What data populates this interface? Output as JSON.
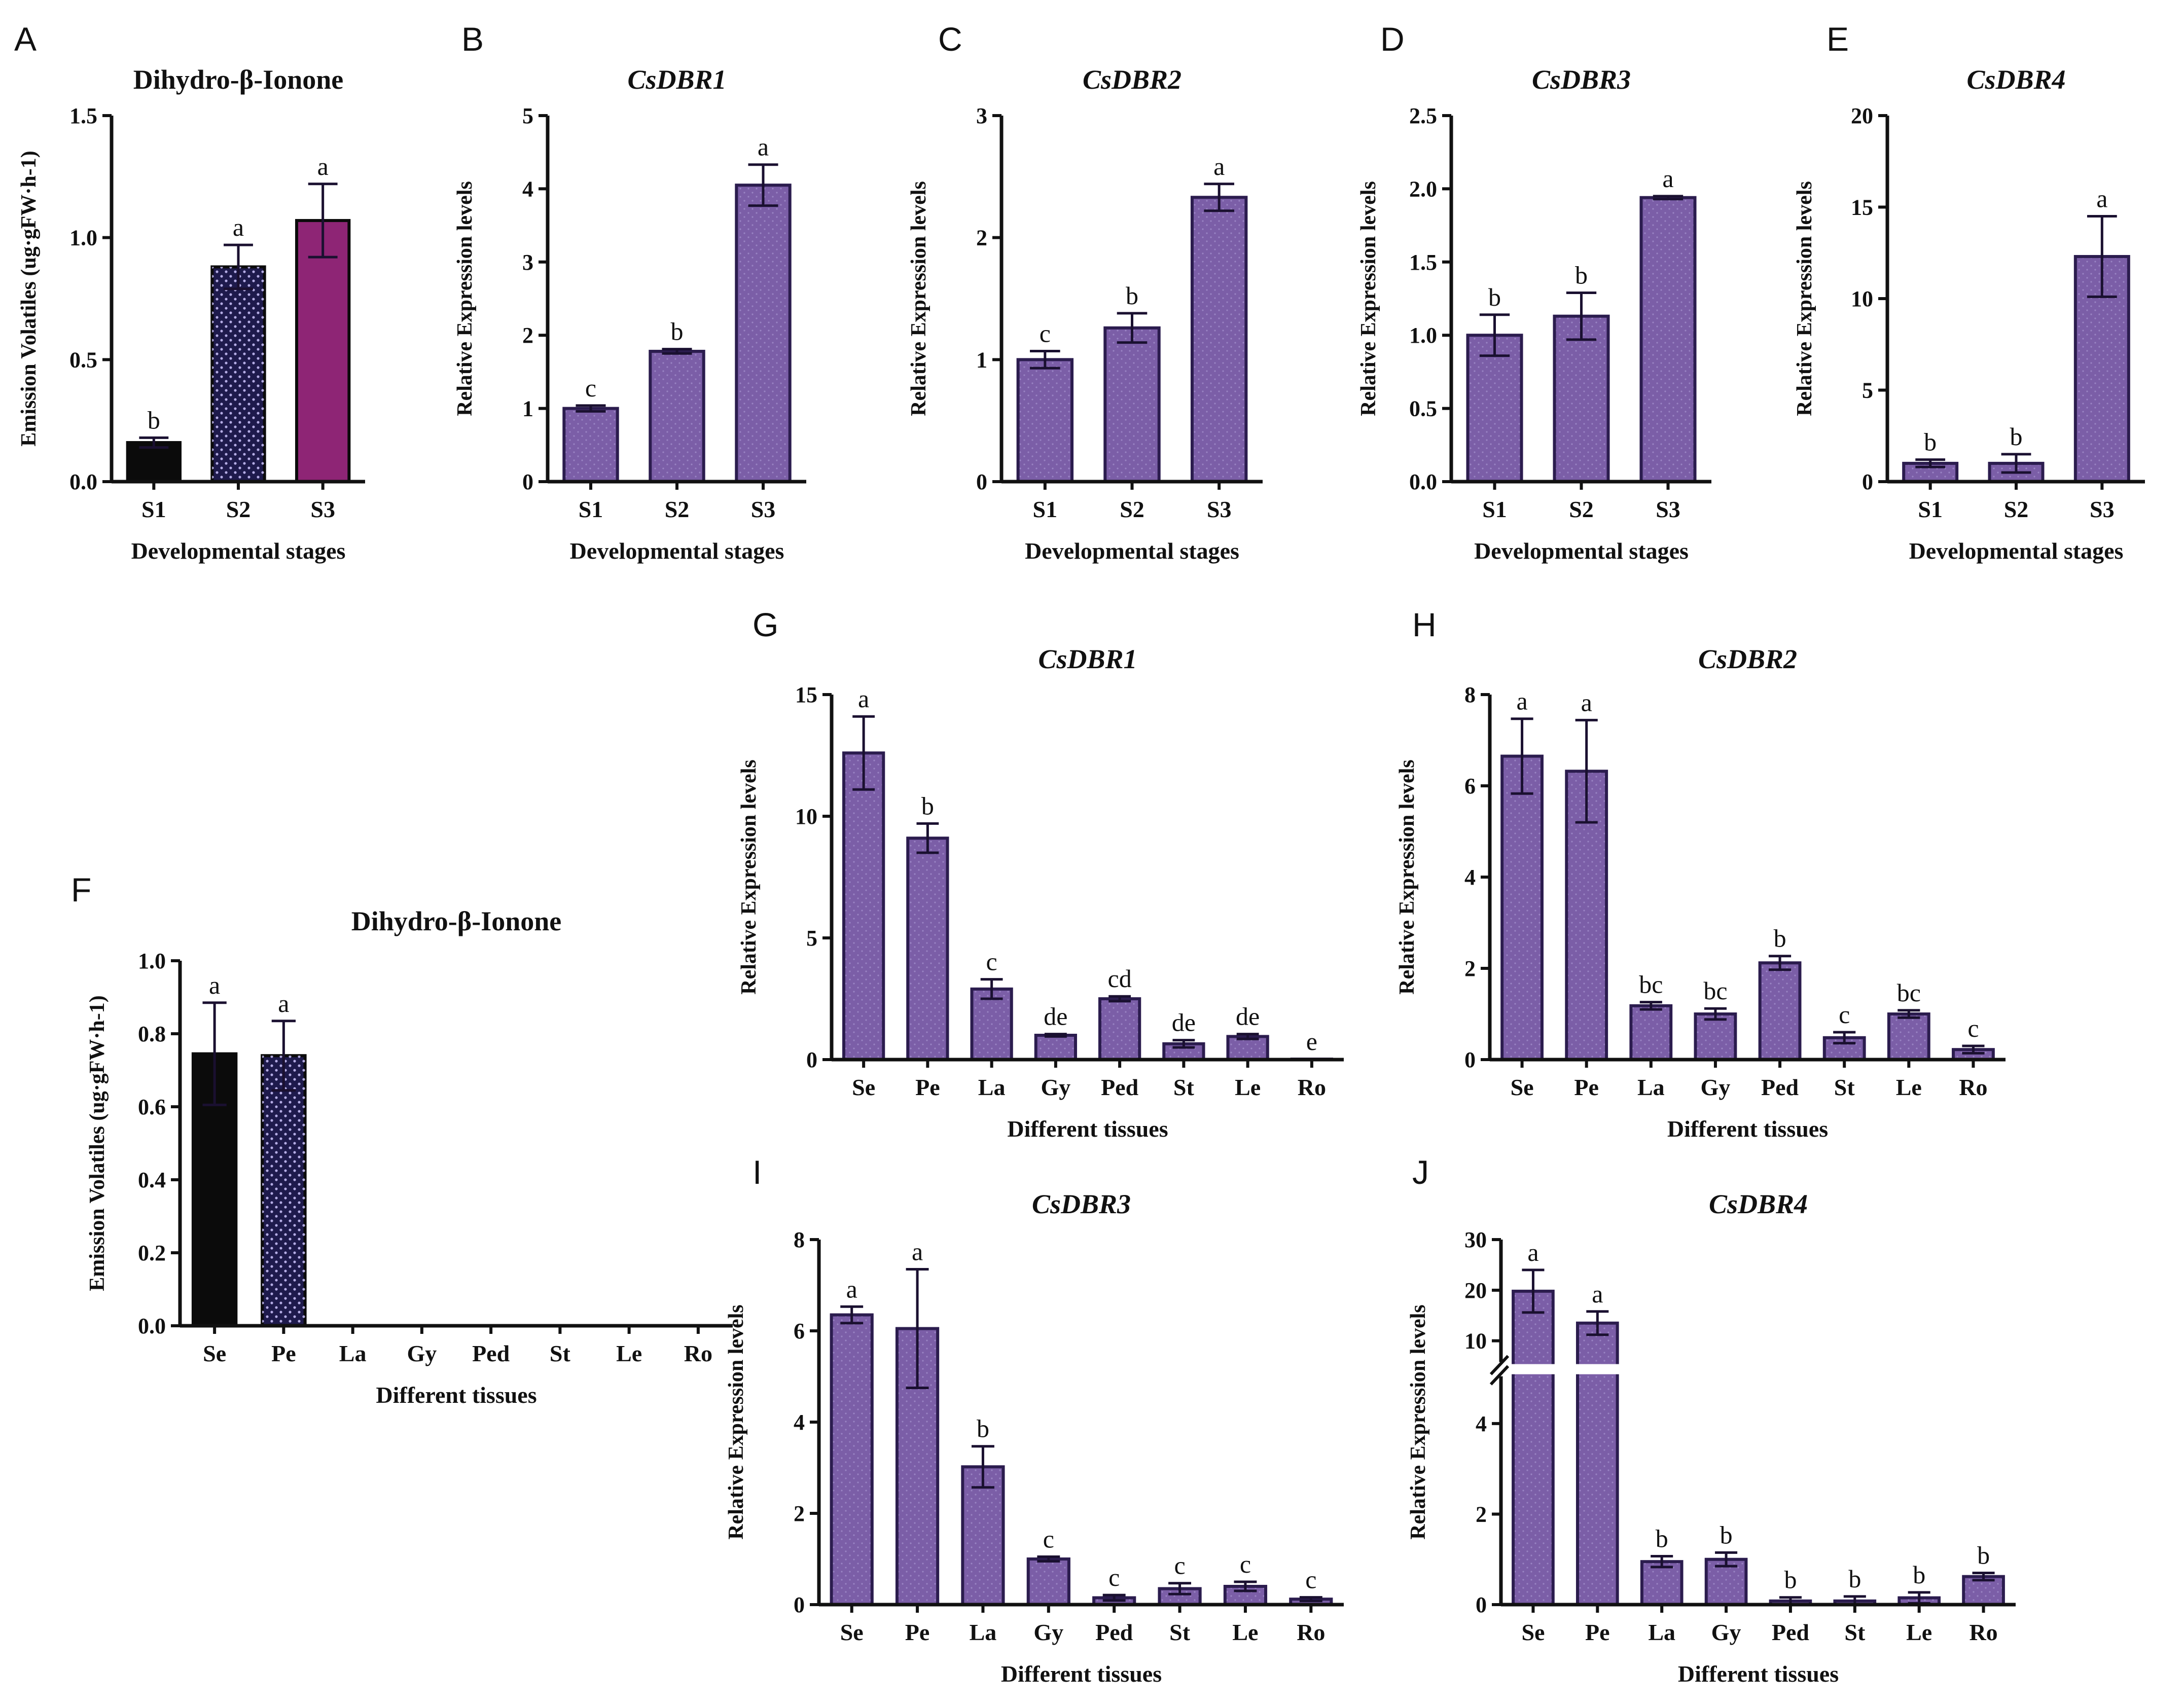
{
  "colors": {
    "purple": "#7B5EA7",
    "purple_edge": "#2B1C4E",
    "black": "#0b0b0b",
    "navy": "#1E1A4C",
    "magenta": "#8E2575"
  },
  "chart_data": [
    {
      "panel": "A",
      "type": "bar",
      "title": "Dihydro-β-Ionone",
      "title_italic": false,
      "categories": [
        "S1",
        "S2",
        "S3"
      ],
      "values": [
        0.16,
        0.88,
        1.07
      ],
      "errors": [
        0.02,
        0.09,
        0.15
      ],
      "significance": [
        "b",
        "a",
        "a"
      ],
      "bar_colors": [
        "black",
        "navy",
        "magenta"
      ],
      "bar_patterns": [
        "none",
        "dots",
        "none"
      ],
      "xlabel": "Developmental stages",
      "ylabel": "Emission Volatiles (ug·gFW·h-1)",
      "ylim": [
        0,
        1.5
      ],
      "yticks": [
        "0.0",
        "0.5",
        "1.0",
        "1.5"
      ]
    },
    {
      "panel": "B",
      "type": "bar",
      "title": "CsDBR1",
      "title_italic": true,
      "categories": [
        "S1",
        "S2",
        "S3"
      ],
      "values": [
        1.0,
        1.78,
        4.05
      ],
      "errors": [
        0.04,
        0.03,
        0.28
      ],
      "significance": [
        "c",
        "b",
        "a"
      ],
      "xlabel": "Developmental stages",
      "ylabel": "Relative Expression levels",
      "ylim": [
        0,
        5
      ],
      "yticks": [
        "0",
        "1",
        "2",
        "3",
        "4",
        "5"
      ]
    },
    {
      "panel": "C",
      "type": "bar",
      "title": "CsDBR2",
      "title_italic": true,
      "categories": [
        "S1",
        "S2",
        "S3"
      ],
      "values": [
        1.0,
        1.26,
        2.33
      ],
      "errors": [
        0.07,
        0.12,
        0.11
      ],
      "significance": [
        "c",
        "b",
        "a"
      ],
      "xlabel": "Developmental stages",
      "ylabel": "Relative Expression levels",
      "ylim": [
        0,
        3
      ],
      "yticks": [
        "0",
        "1",
        "2",
        "3"
      ]
    },
    {
      "panel": "D",
      "type": "bar",
      "title": "CsDBR3",
      "title_italic": true,
      "categories": [
        "S1",
        "S2",
        "S3"
      ],
      "values": [
        1.0,
        1.13,
        1.94
      ],
      "errors": [
        0.14,
        0.16,
        0.01
      ],
      "significance": [
        "b",
        "b",
        "a"
      ],
      "xlabel": "Developmental stages",
      "ylabel": "Relative Expression levels",
      "ylim": [
        0,
        2.5
      ],
      "yticks": [
        "0.0",
        "0.5",
        "1.0",
        "1.5",
        "2.0",
        "2.5"
      ]
    },
    {
      "panel": "E",
      "type": "bar",
      "title": "CsDBR4",
      "title_italic": true,
      "categories": [
        "S1",
        "S2",
        "S3"
      ],
      "values": [
        1.0,
        1.0,
        12.3
      ],
      "errors": [
        0.2,
        0.5,
        2.2
      ],
      "significance": [
        "b",
        "b",
        "a"
      ],
      "xlabel": "Developmental stages",
      "ylabel": "Relative Expression levels",
      "ylim": [
        0,
        20
      ],
      "yticks": [
        "0",
        "5",
        "10",
        "15",
        "20"
      ]
    },
    {
      "panel": "F",
      "type": "bar",
      "title": "Dihydro-β-Ionone",
      "title_italic": false,
      "categories": [
        "Se",
        "Pe",
        "La",
        "Gy",
        "Ped",
        "St",
        "Le",
        "Ro"
      ],
      "values": [
        0.745,
        0.74,
        0,
        0,
        0,
        0,
        0,
        0
      ],
      "errors": [
        0.14,
        0.095,
        0,
        0,
        0,
        0,
        0,
        0
      ],
      "significance": [
        "a",
        "a",
        "",
        "",
        "",
        "",
        "",
        ""
      ],
      "bar_colors": [
        "black",
        "navy"
      ],
      "bar_patterns": [
        "none",
        "dots"
      ],
      "xlabel": "Different tissues",
      "ylabel": "Emission Volatiles (ug·gFW·h-1)",
      "ylim": [
        0,
        1.0
      ],
      "yticks": [
        "0.0",
        "0.2",
        "0.4",
        "0.6",
        "0.8",
        "1.0"
      ]
    },
    {
      "panel": "G",
      "type": "bar",
      "title": "CsDBR1",
      "title_italic": true,
      "categories": [
        "Se",
        "Pe",
        "La",
        "Gy",
        "Ped",
        "St",
        "Le",
        "Ro"
      ],
      "values": [
        12.6,
        9.1,
        2.9,
        1.0,
        2.5,
        0.65,
        0.95,
        0.02
      ],
      "errors": [
        1.5,
        0.6,
        0.4,
        0.05,
        0.1,
        0.15,
        0.1,
        0
      ],
      "significance": [
        "a",
        "b",
        "c",
        "de",
        "cd",
        "de",
        "de",
        "e"
      ],
      "xlabel": "Different tissues",
      "ylabel": "Relative Expression levels",
      "ylim": [
        0,
        15
      ],
      "yticks": [
        "0",
        "5",
        "10",
        "15"
      ]
    },
    {
      "panel": "H",
      "type": "bar",
      "title": "CsDBR2",
      "title_italic": true,
      "categories": [
        "Se",
        "Pe",
        "La",
        "Gy",
        "Ped",
        "St",
        "Le",
        "Ro"
      ],
      "values": [
        6.65,
        6.32,
        1.18,
        1.0,
        2.12,
        0.48,
        1.0,
        0.22
      ],
      "errors": [
        0.82,
        1.12,
        0.08,
        0.12,
        0.15,
        0.12,
        0.08,
        0.08
      ],
      "significance": [
        "a",
        "a",
        "bc",
        "bc",
        "b",
        "c",
        "bc",
        "c"
      ],
      "xlabel": "Different tissues",
      "ylabel": "Relative Expression levels",
      "ylim": [
        0,
        8
      ],
      "yticks": [
        "0",
        "2",
        "4",
        "6",
        "8"
      ]
    },
    {
      "panel": "I",
      "type": "bar",
      "title": "CsDBR3",
      "title_italic": true,
      "categories": [
        "Se",
        "Pe",
        "La",
        "Gy",
        "Ped",
        "St",
        "Le",
        "Ro"
      ],
      "values": [
        6.35,
        6.05,
        3.02,
        1.0,
        0.15,
        0.35,
        0.4,
        0.12
      ],
      "errors": [
        0.18,
        1.3,
        0.45,
        0.05,
        0.06,
        0.12,
        0.1,
        0.04
      ],
      "significance": [
        "a",
        "a",
        "b",
        "c",
        "c",
        "c",
        "c",
        "c"
      ],
      "xlabel": "Different tissues",
      "ylabel": "Relative Expression levels",
      "ylim": [
        0,
        8
      ],
      "yticks": [
        "0",
        "2",
        "4",
        "6",
        "8"
      ]
    },
    {
      "panel": "J",
      "type": "bar",
      "title": "CsDBR4",
      "title_italic": true,
      "categories": [
        "Se",
        "Pe",
        "La",
        "Gy",
        "Ped",
        "St",
        "Le",
        "Ro"
      ],
      "values": [
        19.8,
        13.5,
        0.95,
        1.0,
        0.08,
        0.08,
        0.15,
        0.62
      ],
      "errors": [
        4.2,
        2.3,
        0.12,
        0.15,
        0.08,
        0.1,
        0.12,
        0.08
      ],
      "significance": [
        "a",
        "a",
        "b",
        "b",
        "b",
        "b",
        "b",
        "b"
      ],
      "xlabel": "Different tissues",
      "ylabel": "Relative Expression levels",
      "ylim": [
        0,
        30
      ],
      "axis_break": {
        "lower": [
          0,
          5
        ],
        "upper": [
          5,
          30
        ]
      },
      "yticks": [
        "0",
        "2",
        "4",
        "10",
        "20",
        "30"
      ]
    }
  ]
}
